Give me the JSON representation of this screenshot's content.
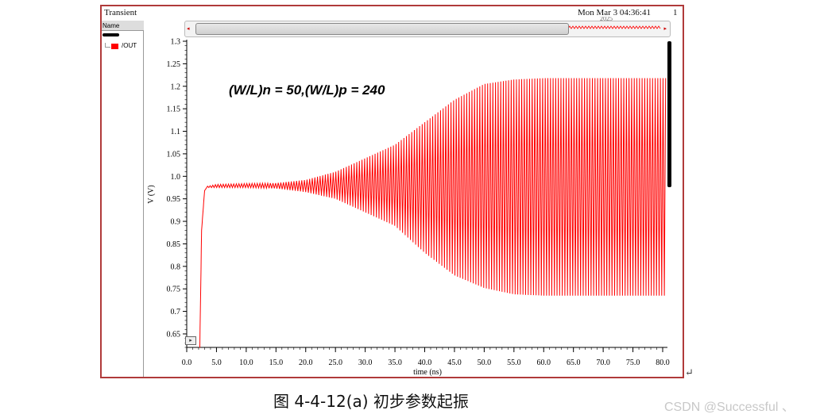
{
  "window": {
    "title": "Transient",
    "date": "Mon Mar 3 04:36:41",
    "date_tail": "2025",
    "page": "1"
  },
  "legend": {
    "header": "Name",
    "signal_label": "/OUT"
  },
  "controls": {
    "scroll_left": "◂",
    "scroll_right": "▸",
    "zoom_button": "▸"
  },
  "caption": "图 4-4-12(a)  初步参数起振",
  "return_mark": "↵",
  "watermark": "CSDN @Successful 、",
  "colors": {
    "trace": "#ff0000",
    "frame": "#b03a3a"
  },
  "chart_data": {
    "type": "line",
    "annotation": "(W/L)n = 50,(W/L)p = 240",
    "xlabel": "time (ns)",
    "ylabel": "V (V)",
    "xlim": [
      0,
      80.8
    ],
    "ylim": [
      0.62,
      1.3
    ],
    "x_ticks": [
      "0.0",
      "5.0",
      "10.0",
      "15.0",
      "20.0",
      "25.0",
      "30.0",
      "35.0",
      "40.0",
      "45.0",
      "50.0",
      "55.0",
      "60.0",
      "65.0",
      "70.0",
      "75.0",
      "80.0"
    ],
    "y_ticks": [
      "0.65",
      "0.7",
      "0.75",
      "0.8",
      "0.85",
      "0.9",
      "0.95",
      "1.0",
      "1.05",
      "1.1",
      "1.15",
      "1.2",
      "1.25",
      "1.3"
    ],
    "series": [
      {
        "name": "/OUT",
        "envelope": {
          "t_ns": [
            2.2,
            2.5,
            3.0,
            3.5,
            5,
            10,
            15,
            20,
            25,
            30,
            35,
            40,
            45,
            50,
            55,
            60,
            65,
            70,
            75,
            80.6
          ],
          "upper": [
            0.62,
            0.88,
            0.968,
            0.978,
            0.982,
            0.984,
            0.985,
            0.992,
            1.01,
            1.04,
            1.07,
            1.12,
            1.17,
            1.205,
            1.215,
            1.218,
            1.218,
            1.218,
            1.218,
            1.218
          ],
          "lower": [
            0.62,
            0.88,
            0.968,
            0.975,
            0.975,
            0.975,
            0.973,
            0.965,
            0.95,
            0.92,
            0.89,
            0.83,
            0.78,
            0.752,
            0.738,
            0.735,
            0.735,
            0.735,
            0.735,
            0.735
          ]
        },
        "oscillation_period_ns": 0.44
      }
    ]
  }
}
